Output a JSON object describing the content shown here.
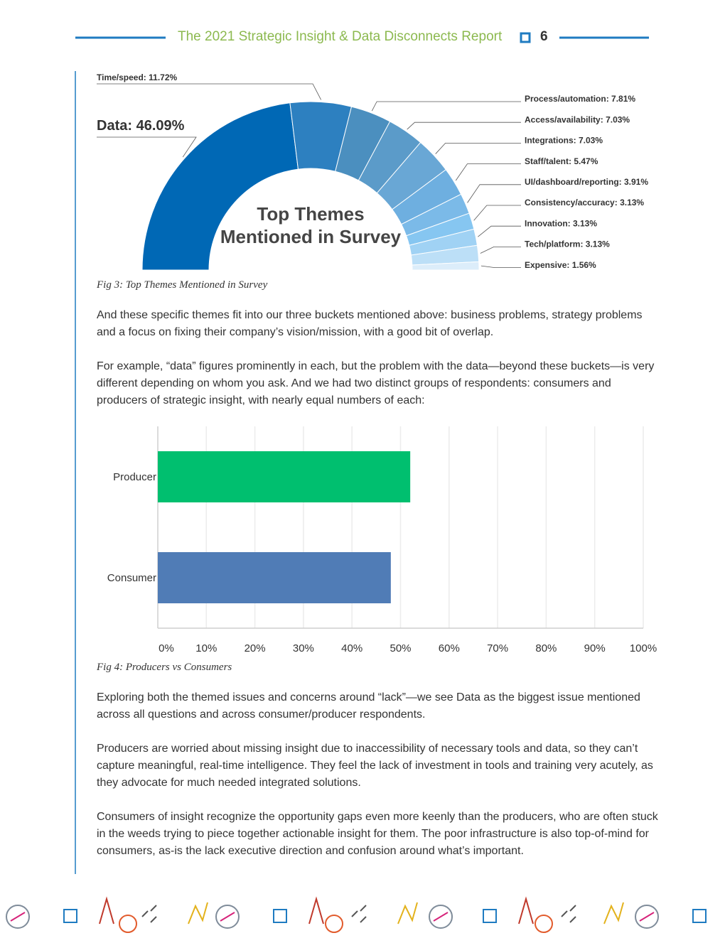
{
  "header": {
    "title": "The 2021 Strategic Insight & Data Disconnects Report",
    "page_number": "6"
  },
  "chart_data": [
    {
      "type": "pie",
      "title": [
        "Top Themes",
        "Mentioned in Survey"
      ],
      "labels": [
        "Data: 46.09%",
        "Time/speed: 11.72%",
        "Process/automation: 7.81%",
        "Access/availability: 7.03%",
        "Integrations: 7.03%",
        "Staff/talent: 5.47%",
        "UI/dashboard/reporting: 3.91%",
        "Consistency/accuracy: 3.13%",
        "Innovation: 3.13%",
        "Tech/platform: 3.13%",
        "Expensive: 1.56%"
      ],
      "values": [
        46.09,
        11.72,
        7.81,
        7.03,
        7.03,
        5.47,
        3.91,
        3.13,
        3.13,
        3.13,
        1.56
      ],
      "colors": [
        "#0068b5",
        "#2d80c0",
        "#4b8fbf",
        "#5b9bc9",
        "#69a7d5",
        "#6eafe0",
        "#7bbae8",
        "#86c6f1",
        "#a0d2f4",
        "#bcdff7",
        "#dcedfa"
      ],
      "caption": "Fig 3: Top Themes Mentioned in Survey"
    },
    {
      "type": "bar",
      "orientation": "horizontal",
      "categories": [
        "Producer",
        "Consumer"
      ],
      "values": [
        52,
        48
      ],
      "colors": [
        "#00bf6f",
        "#507cb6"
      ],
      "xlim": [
        0,
        100
      ],
      "xticks": [
        {
          "value": 0,
          "label": "0%"
        },
        {
          "value": 10,
          "label": "10%"
        },
        {
          "value": 20,
          "label": "20%"
        },
        {
          "value": 30,
          "label": "30%"
        },
        {
          "value": 40,
          "label": "40%"
        },
        {
          "value": 50,
          "label": "50%"
        },
        {
          "value": 60,
          "label": "60%"
        },
        {
          "value": 70,
          "label": "70%"
        },
        {
          "value": 80,
          "label": "80%"
        },
        {
          "value": 90,
          "label": "90%"
        },
        {
          "value": 100,
          "label": "100%"
        }
      ],
      "grid": true,
      "caption": "Fig 4: Producers vs Consumers"
    }
  ],
  "paragraphs": [
    "And these specific themes fit into our three buckets mentioned above: business problems, strategy problems and a focus on fixing their company’s vision/mission, with a good bit of overlap.",
    "For example, “data” figures prominently in each, but the problem with the data—beyond these buckets—is very different depending on whom you ask. And we had two distinct groups of respondents: consumers and producers of strategic insight, with nearly equal numbers of each:",
    "Exploring both the themed issues and concerns around “lack”—we see Data as the biggest issue mentioned across all questions and across consumer/producer respondents.",
    "Producers are worried about missing insight due to inaccessibility of necessary tools and data, so they can’t capture meaningful, real-time intelligence. They feel the lack of investment in tools and training very acutely, as they advocate for much needed integrated solutions.",
    "Consumers of insight recognize the opportunity gaps even more keenly than the producers, who are often stuck in the weeds trying to piece together actionable insight for them. The poor infrastructure is also top-of-mind for consumers, as-is the lack executive direction and confusion around what’s important."
  ]
}
